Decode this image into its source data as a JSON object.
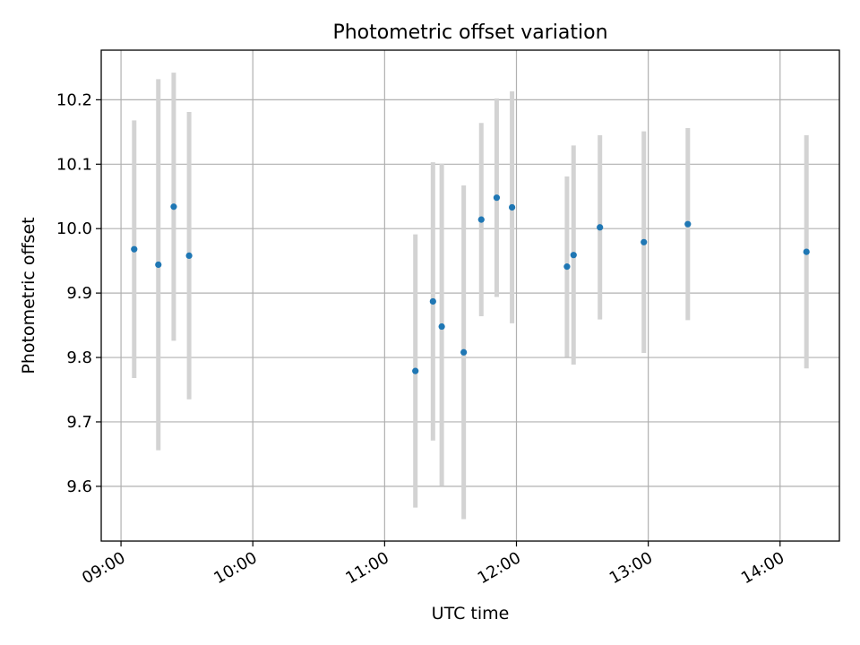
{
  "chart_data": {
    "type": "scatter",
    "title": "Photometric offset variation",
    "xlabel": "UTC time",
    "ylabel": "Photometric offset",
    "x_ticks": [
      "09:00",
      "10:00",
      "11:00",
      "12:00",
      "13:00",
      "14:00"
    ],
    "y_ticks": [
      "9.6",
      "9.7",
      "9.8",
      "9.9",
      "10.0",
      "10.1",
      "10.2"
    ],
    "xlim": [
      "08:51",
      "14:27"
    ],
    "ylim": [
      9.515,
      10.277
    ],
    "grid": true,
    "error_bar_color": "#d3d3d3",
    "marker_color": "#1f77b4",
    "points": [
      {
        "time": "09:06",
        "value": 9.968,
        "err_low": 9.768,
        "err_high": 10.168
      },
      {
        "time": "09:17",
        "value": 9.944,
        "err_low": 9.656,
        "err_high": 10.232
      },
      {
        "time": "09:24",
        "value": 10.034,
        "err_low": 9.826,
        "err_high": 10.242
      },
      {
        "time": "09:31",
        "value": 9.958,
        "err_low": 9.735,
        "err_high": 10.181
      },
      {
        "time": "11:14",
        "value": 9.779,
        "err_low": 9.567,
        "err_high": 9.991
      },
      {
        "time": "11:22",
        "value": 9.887,
        "err_low": 9.671,
        "err_high": 10.103
      },
      {
        "time": "11:26",
        "value": 9.848,
        "err_low": 9.601,
        "err_high": 10.101
      },
      {
        "time": "11:36",
        "value": 9.808,
        "err_low": 9.549,
        "err_high": 10.067
      },
      {
        "time": "11:44",
        "value": 10.014,
        "err_low": 9.864,
        "err_high": 10.164
      },
      {
        "time": "11:51",
        "value": 10.048,
        "err_low": 9.894,
        "err_high": 10.202
      },
      {
        "time": "11:58",
        "value": 10.033,
        "err_low": 9.853,
        "err_high": 10.213
      },
      {
        "time": "12:23",
        "value": 9.941,
        "err_low": 9.801,
        "err_high": 10.081
      },
      {
        "time": "12:26",
        "value": 9.959,
        "err_low": 9.789,
        "err_high": 10.129
      },
      {
        "time": "12:38",
        "value": 10.002,
        "err_low": 9.859,
        "err_high": 10.145
      },
      {
        "time": "12:58",
        "value": 9.979,
        "err_low": 9.807,
        "err_high": 10.151
      },
      {
        "time": "13:18",
        "value": 10.007,
        "err_low": 9.858,
        "err_high": 10.156
      },
      {
        "time": "14:12",
        "value": 9.964,
        "err_low": 9.783,
        "err_high": 10.145
      }
    ]
  }
}
